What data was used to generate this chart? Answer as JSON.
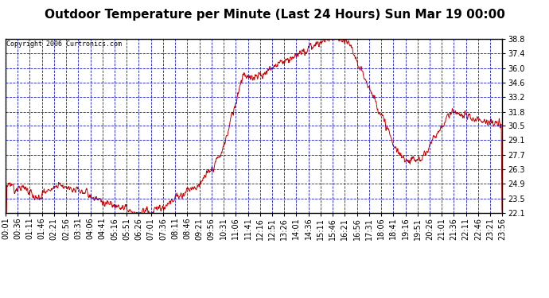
{
  "title": "Outdoor Temperature per Minute (Last 24 Hours) Sun Mar 19 00:00",
  "copyright": "Copyright 2006 Curtronics.com",
  "yticks": [
    22.1,
    23.5,
    24.9,
    26.3,
    27.7,
    29.1,
    30.5,
    31.8,
    33.2,
    34.6,
    36.0,
    37.4,
    38.8
  ],
  "ymin": 22.1,
  "ymax": 38.8,
  "xtick_labels": [
    "00:01",
    "00:36",
    "01:11",
    "01:46",
    "02:21",
    "02:56",
    "03:31",
    "04:06",
    "04:41",
    "05:16",
    "05:51",
    "06:26",
    "07:01",
    "07:36",
    "08:11",
    "08:46",
    "09:21",
    "09:56",
    "10:31",
    "11:06",
    "11:41",
    "12:16",
    "12:51",
    "13:26",
    "14:01",
    "14:36",
    "15:11",
    "15:46",
    "16:21",
    "16:56",
    "17:31",
    "18:06",
    "18:41",
    "19:16",
    "19:51",
    "20:26",
    "21:01",
    "21:36",
    "22:11",
    "22:46",
    "23:21",
    "23:56"
  ],
  "line_color": "#cc0000",
  "grid_color": "#0000bb",
  "background_color": "#ffffff",
  "title_fontsize": 11,
  "copyright_fontsize": 6,
  "tick_fontsize": 7,
  "ylabel_fontsize": 7
}
